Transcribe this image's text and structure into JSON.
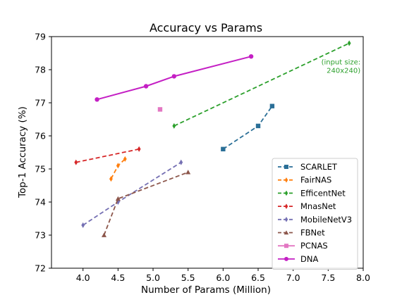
{
  "chart_data": {
    "type": "line",
    "title": "Accuracy vs Params",
    "xlabel": "Number of Params (Million)",
    "ylabel": "Top-1 Accuracy (%)",
    "xlim": [
      3.55,
      8.0
    ],
    "ylim": [
      72,
      79
    ],
    "xticks": [
      "4.0",
      "4.5",
      "5.0",
      "5.5",
      "6.0",
      "6.5",
      "7.0",
      "7.5",
      "8.0"
    ],
    "yticks": [
      "72",
      "73",
      "74",
      "75",
      "76",
      "77",
      "78",
      "79"
    ],
    "grid": false,
    "legend_position": "lower-right",
    "series": [
      {
        "name": "SCARLET",
        "color": "#2a6f97",
        "marker": "square",
        "dashed": true,
        "points": [
          [
            6.0,
            75.6
          ],
          [
            6.5,
            76.3
          ],
          [
            6.7,
            76.9
          ]
        ]
      },
      {
        "name": "FairNAS",
        "color": "#ff7f0e",
        "marker": "diamond",
        "dashed": true,
        "points": [
          [
            4.4,
            74.7
          ],
          [
            4.5,
            75.1
          ],
          [
            4.6,
            75.3
          ]
        ]
      },
      {
        "name": "EfficentNet",
        "color": "#2ca02c",
        "marker": "diamond",
        "dashed": true,
        "points": [
          [
            5.3,
            76.3
          ],
          [
            7.8,
            78.8
          ]
        ]
      },
      {
        "name": "MnasNet",
        "color": "#d62728",
        "marker": "diamond",
        "dashed": true,
        "points": [
          [
            3.9,
            75.2
          ],
          [
            4.8,
            75.6
          ]
        ]
      },
      {
        "name": "MobileNetV3",
        "color": "#7570b3",
        "marker": "diamond",
        "dashed": true,
        "points": [
          [
            4.0,
            73.3
          ],
          [
            4.5,
            74.0
          ],
          [
            5.4,
            75.2
          ]
        ]
      },
      {
        "name": "FBNet",
        "color": "#8c564b",
        "marker": "triangle",
        "dashed": true,
        "points": [
          [
            4.3,
            73.0
          ],
          [
            4.5,
            74.1
          ],
          [
            5.5,
            74.9
          ]
        ]
      },
      {
        "name": "PCNAS",
        "color": "#e377c2",
        "marker": "square",
        "dashed": false,
        "points": [
          [
            5.1,
            76.8
          ]
        ]
      },
      {
        "name": "DNA",
        "color": "#c41fc4",
        "marker": "circle",
        "dashed": false,
        "points": [
          [
            4.2,
            77.1
          ],
          [
            4.9,
            77.5
          ],
          [
            5.3,
            77.8
          ],
          [
            6.4,
            78.4
          ]
        ]
      }
    ],
    "annotations": [
      {
        "lines": [
          "(input size:",
          "240x240)"
        ],
        "color": "#2ca02c"
      }
    ]
  }
}
